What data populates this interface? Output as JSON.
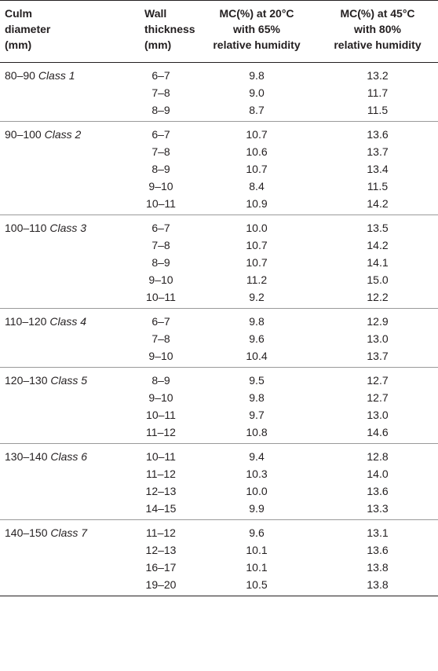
{
  "table": {
    "headers": [
      "Culm\ndiameter\n(mm)",
      "Wall\nthickness\n(mm)",
      "MC(%) at 20°C\nwith 65%\nrelative humidity",
      "MC(%) at 45°C\nwith 80%\nrelative humidity"
    ],
    "groups": [
      {
        "diameter": "80–90",
        "class": "Class 1",
        "rows": [
          {
            "wall": "6–7",
            "mc20": "9.8",
            "mc45": "13.2"
          },
          {
            "wall": "7–8",
            "mc20": "9.0",
            "mc45": "11.7"
          },
          {
            "wall": "8–9",
            "mc20": "8.7",
            "mc45": "11.5"
          }
        ]
      },
      {
        "diameter": "90–100",
        "class": "Class 2",
        "rows": [
          {
            "wall": "6–7",
            "mc20": "10.7",
            "mc45": "13.6"
          },
          {
            "wall": "7–8",
            "mc20": "10.6",
            "mc45": "13.7"
          },
          {
            "wall": "8–9",
            "mc20": "10.7",
            "mc45": "13.4"
          },
          {
            "wall": "9–10",
            "mc20": "8.4",
            "mc45": "11.5"
          },
          {
            "wall": "10–11",
            "mc20": "10.9",
            "mc45": "14.2"
          }
        ]
      },
      {
        "diameter": "100–110",
        "class": "Class 3",
        "rows": [
          {
            "wall": "6–7",
            "mc20": "10.0",
            "mc45": "13.5"
          },
          {
            "wall": "7–8",
            "mc20": "10.7",
            "mc45": "14.2"
          },
          {
            "wall": "8–9",
            "mc20": "10.7",
            "mc45": "14.1"
          },
          {
            "wall": "9–10",
            "mc20": "11.2",
            "mc45": "15.0"
          },
          {
            "wall": "10–11",
            "mc20": "9.2",
            "mc45": "12.2"
          }
        ]
      },
      {
        "diameter": "110–120",
        "class": "Class 4",
        "rows": [
          {
            "wall": "6–7",
            "mc20": "9.8",
            "mc45": "12.9"
          },
          {
            "wall": "7–8",
            "mc20": "9.6",
            "mc45": "13.0"
          },
          {
            "wall": "9–10",
            "mc20": "10.4",
            "mc45": "13.7"
          }
        ]
      },
      {
        "diameter": "120–130",
        "class": "Class 5",
        "rows": [
          {
            "wall": "8–9",
            "mc20": "9.5",
            "mc45": "12.7"
          },
          {
            "wall": "9–10",
            "mc20": "9.8",
            "mc45": "12.7"
          },
          {
            "wall": "10–11",
            "mc20": "9.7",
            "mc45": "13.0"
          },
          {
            "wall": "11–12",
            "mc20": "10.8",
            "mc45": "14.6"
          }
        ]
      },
      {
        "diameter": "130–140",
        "class": "Class 6",
        "rows": [
          {
            "wall": "10–11",
            "mc20": "9.4",
            "mc45": "12.8"
          },
          {
            "wall": "11–12",
            "mc20": "10.3",
            "mc45": "14.0"
          },
          {
            "wall": "12–13",
            "mc20": "10.0",
            "mc45": "13.6"
          },
          {
            "wall": "14–15",
            "mc20": "9.9",
            "mc45": "13.3"
          }
        ]
      },
      {
        "diameter": "140–150",
        "class": "Class 7",
        "rows": [
          {
            "wall": "11–12",
            "mc20": "9.6",
            "mc45": "13.1"
          },
          {
            "wall": "12–13",
            "mc20": "10.1",
            "mc45": "13.6"
          },
          {
            "wall": "16–17",
            "mc20": "10.1",
            "mc45": "13.8"
          },
          {
            "wall": "19–20",
            "mc20": "10.5",
            "mc45": "13.8"
          }
        ]
      }
    ]
  }
}
